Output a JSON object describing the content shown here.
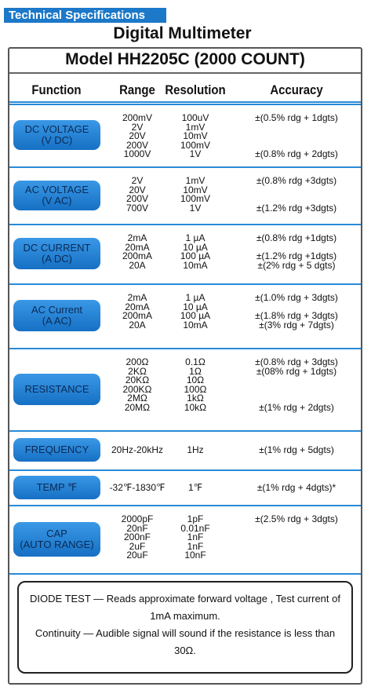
{
  "header": {
    "tag": "Technical Specifications",
    "title": "Digital Multimeter",
    "model": "Model HH2205C (2000 COUNT)"
  },
  "table": {
    "columns": [
      "Function",
      "Range",
      "Resolution",
      "Accuracy"
    ],
    "sections": [
      {
        "function": [
          "DC VOLTAGE",
          "(V DC)"
        ],
        "ranges": [
          "200mV",
          "2V",
          "20V",
          "200V",
          "1000V"
        ],
        "resolutions": [
          "100uV",
          "1mV",
          "10mV",
          "100mV",
          "1V"
        ],
        "accuracy": [
          "±(0.5% rdg + 1dgts)",
          null,
          null,
          null,
          "±(0.8% rdg + 2dgts)"
        ]
      },
      {
        "function": [
          "AC VOLTAGE",
          "(V AC)"
        ],
        "ranges": [
          "2V",
          "20V",
          "200V",
          "700V"
        ],
        "resolutions": [
          "1mV",
          "10mV",
          "100mV",
          "1V"
        ],
        "accuracy": [
          "±(0.8% rdg +3dgts)",
          null,
          null,
          "±(1.2% rdg +3dgts)"
        ]
      },
      {
        "function": [
          "DC CURRENT",
          "(A DC)"
        ],
        "ranges": [
          "2mA",
          "20mA",
          "200mA",
          "20A"
        ],
        "resolutions": [
          "1 µA",
          "10 µA",
          "100 µA",
          "10mA"
        ],
        "accuracy": [
          "±(0.8% rdg +1dgts)",
          null,
          "±(1.2% rdg +1dgts)",
          "±(2% rdg + 5 dgts)"
        ]
      },
      {
        "function": [
          "AC Current",
          "(A AC)"
        ],
        "ranges": [
          "2mA",
          "20mA",
          "200mA",
          "20A"
        ],
        "resolutions": [
          "1 µA",
          "10 µA",
          "100 µA",
          "10mA"
        ],
        "accuracy": [
          "±(1.0% rdg + 3dgts)",
          null,
          "±(1.8% rdg + 3dgts)",
          "±(3% rdg + 7dgts)"
        ]
      },
      {
        "function": [
          "RESISTANCE"
        ],
        "ranges": [
          "200Ω",
          "2KΩ",
          "20KΩ",
          "200KΩ",
          "2MΩ",
          "20MΩ"
        ],
        "resolutions": [
          "0.1Ω",
          "1Ω",
          "10Ω",
          "100Ω",
          "1kΩ",
          "10kΩ"
        ],
        "accuracy": [
          "±(0.8% rdg + 3dgts)",
          "±(08% rdg + 1dgts)",
          null,
          null,
          null,
          "±(1% rdg + 2dgts)"
        ]
      },
      {
        "function": [
          "FREQUENCY"
        ],
        "ranges": [
          "20Hz-20kHz"
        ],
        "resolutions": [
          "1Hz"
        ],
        "accuracy": [
          "±(1% rdg + 5dgts)"
        ]
      },
      {
        "function": [
          "TEMP ℉"
        ],
        "ranges": [
          "-32℉-1830℉"
        ],
        "resolutions": [
          "1℉"
        ],
        "accuracy": [
          "±(1% rdg + 4dgts)*"
        ]
      },
      {
        "function": [
          "CAP",
          "(AUTO RANGE)"
        ],
        "ranges": [
          "2000pF",
          "20nF",
          "200nF",
          "2uF",
          "20uF"
        ],
        "resolutions": [
          "1pF",
          "0.01nF",
          "1nF",
          "1nF",
          "10nF"
        ],
        "accuracy": [
          "±(2.5% rdg + 3dgts)",
          null,
          null,
          null,
          null
        ]
      }
    ]
  },
  "notes": [
    "DIODE TEST — Reads approximate forward voltage , Test current of 1mA maximum.",
    "Continuity — Audible signal will sound if the resistance is less than 30Ω."
  ]
}
